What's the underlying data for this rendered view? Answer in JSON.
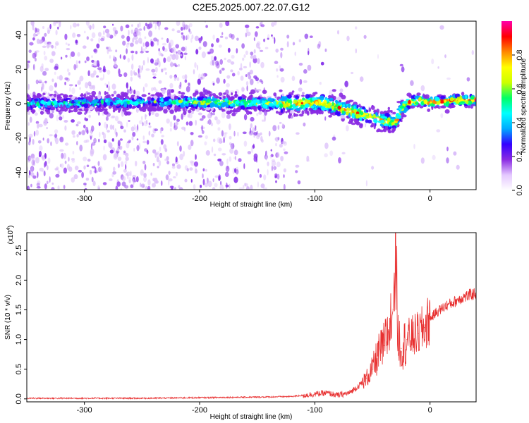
{
  "title": "C2E5.2025.007.22.07.G12",
  "chart_data": [
    {
      "type": "heatmap",
      "xlabel": "Height of straight line (km)",
      "ylabel": "Frequency (Hz)",
      "xlim": [
        -350,
        40
      ],
      "ylim": [
        -50,
        48
      ],
      "xticks": [
        -300,
        -200,
        -100,
        0
      ],
      "yticks": [
        -40,
        -20,
        0,
        20,
        40
      ],
      "colorbar": {
        "label": "Normalized spectral amplitude",
        "range": [
          0,
          1
        ],
        "ticks": [
          "0.0",
          "0.2",
          "0.4",
          "0.6",
          "0.8"
        ],
        "colors": [
          "#ffffff",
          "#e4c8ff",
          "#8a2be2",
          "#3300ff",
          "#00aaff",
          "#00ffff",
          "#00ff66",
          "#ccff00",
          "#ffff00",
          "#ff8800",
          "#ff0000",
          "#ff00aa"
        ]
      },
      "ridge": {
        "x": [
          -350,
          -220,
          -130,
          -100,
          -90,
          -80,
          -70,
          -60,
          -50,
          -40,
          -30,
          -25,
          -20,
          -10,
          0,
          10,
          20,
          40
        ],
        "y": [
          0,
          1,
          0,
          0.5,
          0,
          -2,
          -4,
          -6,
          -8,
          -10,
          -11,
          -3,
          0,
          2,
          1,
          1,
          2,
          2
        ]
      }
    },
    {
      "type": "line",
      "xlabel": "Height of straight line (km)",
      "ylabel": "SNR (10 * v/v)",
      "y_multiplier": "(x10^4)",
      "xlim": [
        -350,
        40
      ],
      "ylim": [
        -0.05,
        2.8
      ],
      "xticks": [
        -300,
        -200,
        -100,
        0
      ],
      "yticks": [
        0.0,
        0.5,
        1.0,
        1.5,
        2.0,
        2.5
      ],
      "series": [
        {
          "color": "#e83030",
          "x": [
            -350,
            -300,
            -250,
            -200,
            -150,
            -120,
            -110,
            -100,
            -90,
            -80,
            -70,
            -60,
            -55,
            -50,
            -45,
            -40,
            -35,
            -32,
            -30,
            -28,
            -25,
            -20,
            -15,
            -10,
            -5,
            0,
            5,
            10,
            15,
            20,
            25,
            30,
            35,
            40
          ],
          "y": [
            0.01,
            0.01,
            0.01,
            0.02,
            0.03,
            0.04,
            0.06,
            0.08,
            0.1,
            0.06,
            0.1,
            0.25,
            0.35,
            0.5,
            0.75,
            0.9,
            1.2,
            1.5,
            2.8,
            1.1,
            0.85,
            1.0,
            1.05,
            1.1,
            1.2,
            1.35,
            1.45,
            1.52,
            1.58,
            1.62,
            1.68,
            1.72,
            1.75,
            1.78
          ]
        }
      ]
    }
  ]
}
